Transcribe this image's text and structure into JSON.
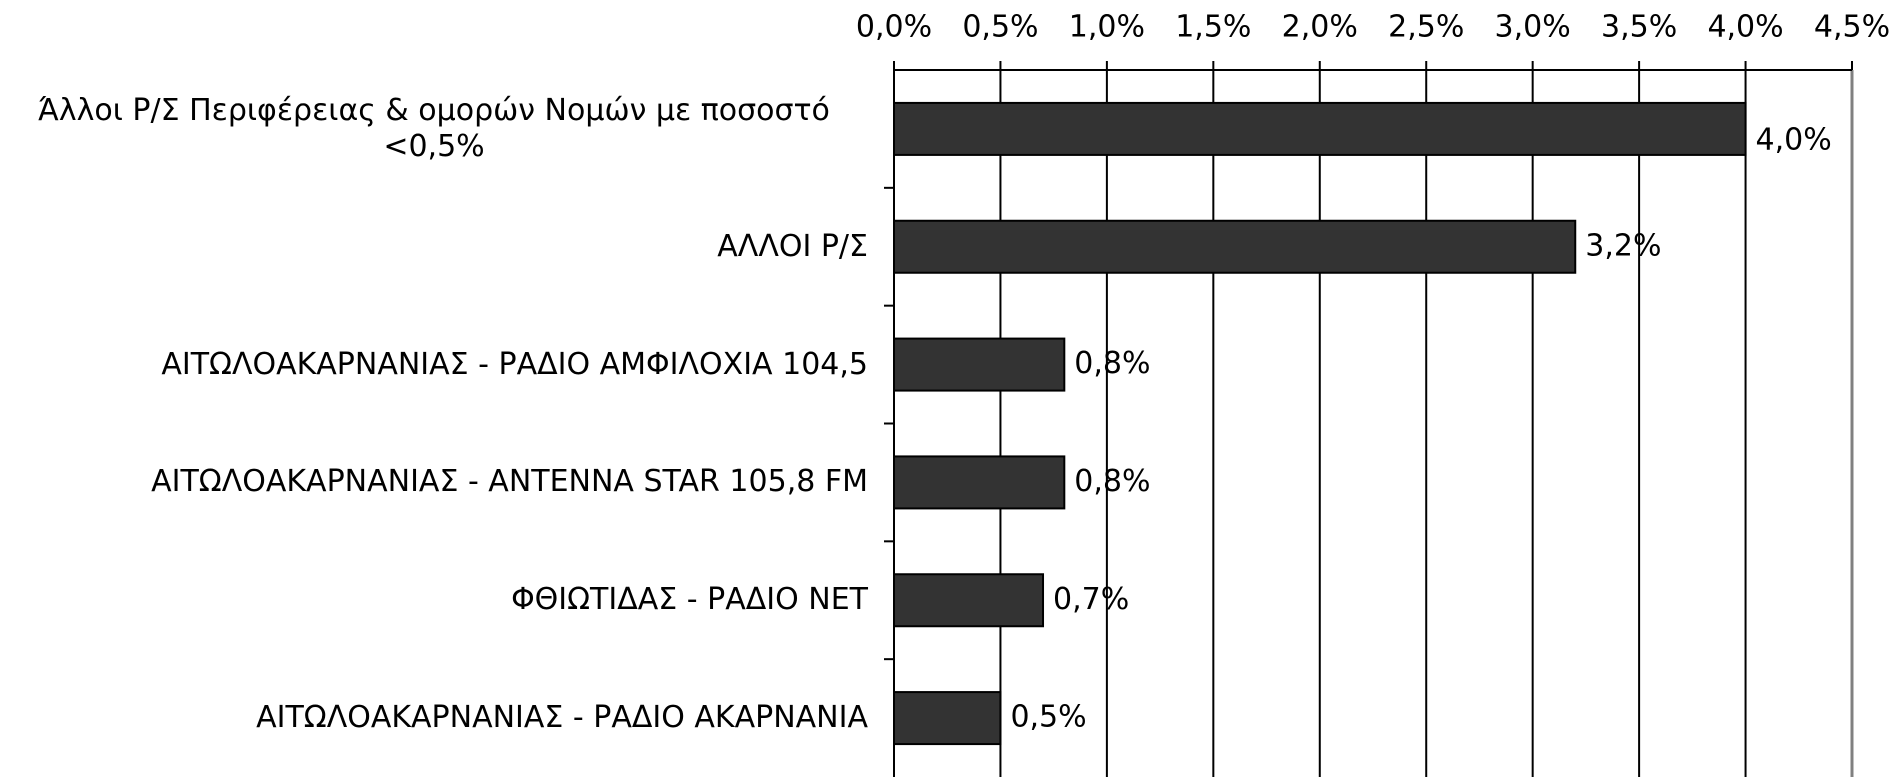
{
  "chart_data": {
    "type": "bar",
    "orientation": "horizontal",
    "categories": [
      "Άλλοι Ρ/Σ Περιφέρειας & ομορών Νομών με ποσοστό <0,5%",
      "ΑΛΛΟΙ Ρ/Σ",
      "ΑΙΤΩΛΟΑΚΑΡΝΑΝΙΑΣ - ΡΑΔΙΟ ΑΜΦΙΛΟΧΙΑ 104,5",
      "ΑΙΤΩΛΟΑΚΑΡΝΑΝΙΑΣ - ANTENNA STAR 105,8 FM",
      "ΦΘΙΩΤΙΔΑΣ - ΡΑΔΙΟ NET",
      "ΑΙΤΩΛΟΑΚΑΡΝΑΝΙΑΣ - ΡΑΔΙΟ ΑΚΑΡΝΑΝΙΑ"
    ],
    "values": [
      4.0,
      3.2,
      0.8,
      0.8,
      0.7,
      0.5
    ],
    "value_labels": [
      "4,0%",
      "3,2%",
      "0,8%",
      "0,8%",
      "0,7%",
      "0,5%"
    ],
    "color": "#333333",
    "xlim": [
      0,
      4.5
    ],
    "xticks": [
      {
        "value": 0,
        "label": "0,0%"
      },
      {
        "value": 0.5,
        "label": "0,5%"
      },
      {
        "value": 1,
        "label": "1,0%"
      },
      {
        "value": 1.5,
        "label": "1,5%"
      },
      {
        "value": 2,
        "label": "2,0%"
      },
      {
        "value": 2.5,
        "label": "2,5%"
      },
      {
        "value": 3,
        "label": "3,0%"
      },
      {
        "value": 3.5,
        "label": "3,5%"
      },
      {
        "value": 4,
        "label": "4,0%"
      },
      {
        "value": 4.5,
        "label": "4,5%"
      }
    ],
    "grid": true
  }
}
